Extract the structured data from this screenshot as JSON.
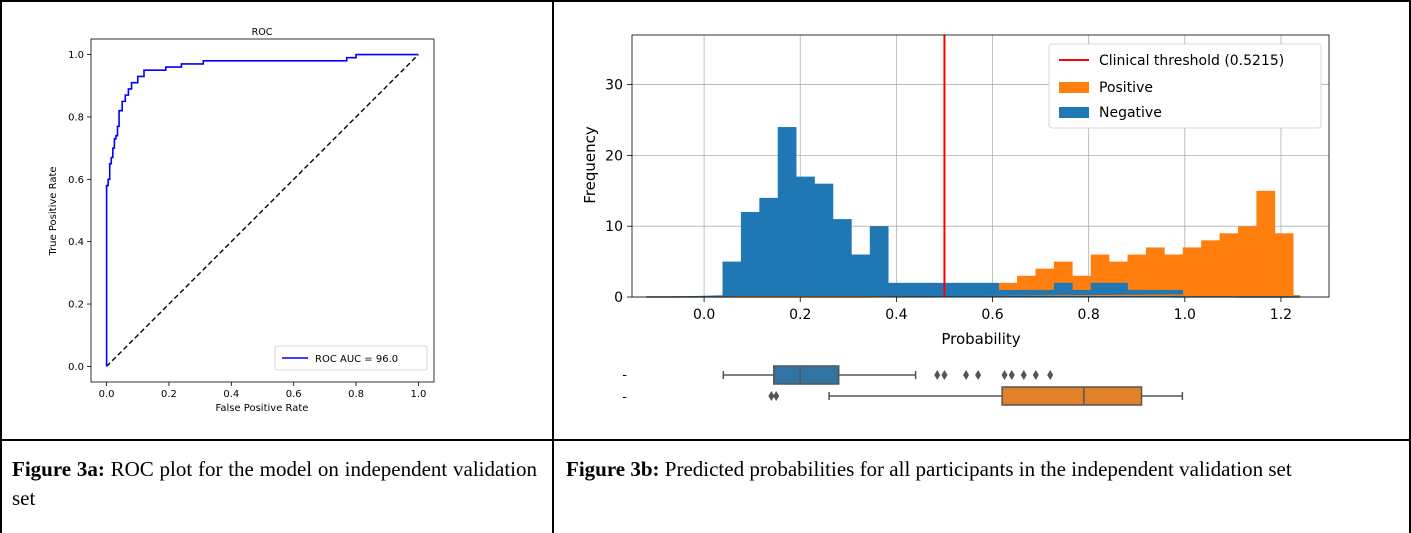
{
  "captions": {
    "a_label": "Figure 3a:",
    "a_text": " ROC plot for the model on independent validation set",
    "b_label": "Figure 3b:",
    "b_text": " Predicted probabilities for all participants in the independent validation set"
  },
  "colors": {
    "roc_line": "#0000ff",
    "diagonal": "#000000",
    "threshold": "#ff0000",
    "positive": "#ff7f0e",
    "negative": "#1f77b4",
    "box_positive": "#e1812c",
    "box_negative": "#3274a1"
  },
  "chart_data": [
    {
      "type": "line",
      "title": "ROC",
      "xlabel": "False Positive Rate",
      "ylabel": "True Positive Rate",
      "xlim": [
        -0.05,
        1.05
      ],
      "ylim": [
        -0.05,
        1.05
      ],
      "xticks": [
        "0.0",
        "0.2",
        "0.4",
        "0.6",
        "0.8",
        "1.0"
      ],
      "yticks": [
        "0.0",
        "0.2",
        "0.4",
        "0.6",
        "0.8",
        "1.0"
      ],
      "legend_position": "lower-right",
      "series": [
        {
          "name": "ROC AUC = 96.0",
          "x": [
            0,
            0,
            0.005,
            0.005,
            0.01,
            0.01,
            0.015,
            0.015,
            0.02,
            0.02,
            0.025,
            0.025,
            0.03,
            0.03,
            0.035,
            0.035,
            0.04,
            0.04,
            0.05,
            0.05,
            0.06,
            0.06,
            0.07,
            0.07,
            0.08,
            0.08,
            0.1,
            0.1,
            0.12,
            0.12,
            0.19,
            0.19,
            0.24,
            0.24,
            0.31,
            0.31,
            0.77,
            0.77,
            0.8,
            0.8,
            1.0
          ],
          "y": [
            0,
            0.58,
            0.58,
            0.6,
            0.6,
            0.65,
            0.65,
            0.67,
            0.67,
            0.7,
            0.7,
            0.73,
            0.73,
            0.74,
            0.74,
            0.77,
            0.77,
            0.82,
            0.82,
            0.85,
            0.85,
            0.87,
            0.87,
            0.89,
            0.89,
            0.91,
            0.91,
            0.93,
            0.93,
            0.95,
            0.95,
            0.96,
            0.96,
            0.97,
            0.97,
            0.98,
            0.98,
            0.99,
            0.99,
            1.0,
            1.0
          ]
        },
        {
          "name": "",
          "style": "dashed",
          "x": [
            0,
            1
          ],
          "y": [
            0,
            1
          ]
        }
      ]
    },
    {
      "type": "bar",
      "subtype": "histogram",
      "xlabel": "Probability",
      "ylabel": "Frequency",
      "xlim": [
        -0.15,
        1.3
      ],
      "ylim": [
        0,
        37
      ],
      "xticks": [
        "0.0",
        "0.2",
        "0.4",
        "0.6",
        "0.8",
        "1.0",
        "1.2"
      ],
      "yticks": [
        "0",
        "10",
        "20",
        "30"
      ],
      "grid": true,
      "legend_position": "top-right",
      "threshold": {
        "name": "Clinical threshold (0.5215)",
        "x": 0.5
      },
      "bin_width": 0.0383,
      "series": [
        {
          "name": "Positive",
          "bin_start": 0.0383,
          "counts": [
            0,
            0,
            0,
            0,
            0,
            0,
            0,
            0,
            0,
            0,
            0,
            0,
            0,
            0,
            1,
            2,
            3,
            4,
            5,
            3,
            6,
            5,
            6,
            7,
            6,
            7,
            8,
            9,
            10,
            15,
            9
          ]
        },
        {
          "name": "Negative",
          "bin_start": 0.0383,
          "counts": [
            5,
            12,
            14,
            24,
            17,
            16,
            11,
            6,
            10,
            2,
            2,
            2,
            2,
            2,
            2,
            1,
            1,
            1,
            2,
            1,
            2,
            2,
            1,
            1,
            1,
            0,
            0,
            0,
            0,
            0,
            0
          ]
        }
      ],
      "boxplot": [
        {
          "group": "Negative",
          "tick_label": "-",
          "whisker_low": 0.04,
          "q1": 0.145,
          "median": 0.2,
          "q3": 0.28,
          "whisker_high": 0.44,
          "outliers": [
            0.485,
            0.5,
            0.545,
            0.57,
            0.625,
            0.64,
            0.665,
            0.69,
            0.72
          ]
        },
        {
          "group": "Positive",
          "tick_label": "-",
          "whisker_low": 0.26,
          "q1": 0.62,
          "median": 0.79,
          "q3": 0.91,
          "whisker_high": 0.995,
          "outliers": [
            0.14,
            0.15
          ]
        }
      ]
    }
  ]
}
